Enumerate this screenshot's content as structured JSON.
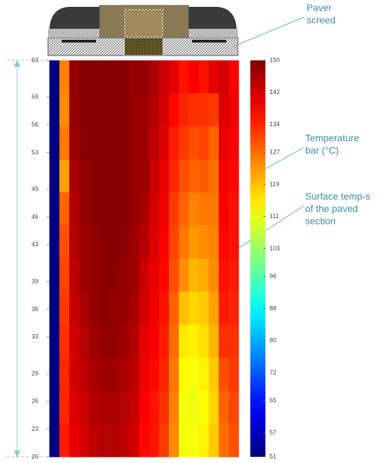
{
  "chart_data": {
    "type": "heatmap",
    "ylim": [
      20,
      63
    ],
    "yticks": [
      63,
      59,
      56,
      53,
      49,
      46,
      43,
      39,
      36,
      33,
      29,
      26,
      23,
      20
    ],
    "colormap": "jet",
    "clim": [
      51,
      150
    ],
    "colorbar_ticks": [
      150,
      142,
      134,
      127,
      119,
      111,
      103,
      96,
      88,
      80,
      72,
      65,
      57,
      51
    ],
    "values": [
      [
        51,
        125,
        148,
        149,
        149,
        149,
        149,
        149,
        148,
        148,
        146,
        143,
        140,
        136,
        138,
        136,
        140,
        142,
        138
      ],
      [
        51,
        124,
        148,
        149,
        149,
        149,
        149,
        149,
        148,
        147,
        145,
        142,
        137,
        134,
        133,
        133,
        132,
        141,
        139
      ],
      [
        51,
        126,
        147,
        149,
        149,
        149,
        149,
        149,
        148,
        147,
        144,
        141,
        135,
        132,
        130,
        131,
        128,
        140,
        138
      ],
      [
        51,
        122,
        146,
        148,
        149,
        149,
        149,
        149,
        148,
        147,
        143,
        140,
        134,
        130,
        128,
        129,
        127,
        139,
        137
      ],
      [
        51,
        128,
        145,
        148,
        149,
        149,
        149,
        149,
        148,
        146,
        142,
        139,
        132,
        128,
        125,
        126,
        126,
        138,
        136
      ],
      [
        51,
        130,
        145,
        147,
        148,
        149,
        149,
        149,
        147,
        145,
        141,
        138,
        131,
        126,
        123,
        124,
        125,
        137,
        136
      ],
      [
        51,
        131,
        144,
        147,
        148,
        149,
        149,
        148,
        147,
        143,
        140,
        137,
        130,
        124,
        120,
        121,
        124,
        136,
        135
      ],
      [
        51,
        132,
        143,
        146,
        148,
        149,
        148,
        148,
        146,
        142,
        139,
        136,
        128,
        119,
        117,
        118,
        122,
        135,
        134
      ],
      [
        51,
        133,
        142,
        145,
        147,
        148,
        148,
        147,
        145,
        140,
        138,
        135,
        127,
        115,
        114,
        116,
        120,
        133,
        133
      ],
      [
        51,
        134,
        142,
        144,
        146,
        147,
        147,
        146,
        144,
        139,
        137,
        134,
        126,
        113,
        112,
        114,
        118,
        130,
        132
      ],
      [
        51,
        134,
        141,
        143,
        145,
        146,
        146,
        145,
        143,
        138,
        136,
        133,
        125,
        112,
        111,
        113,
        117,
        128,
        131
      ],
      [
        51,
        135,
        140,
        142,
        144,
        145,
        145,
        144,
        142,
        137,
        136,
        132,
        124,
        112,
        112,
        114,
        118,
        127,
        130
      ]
    ],
    "annotations": [
      {
        "lines": [
          "Paver",
          "screed"
        ]
      },
      {
        "lines": [
          "Temperature",
          "bar (°C)"
        ]
      },
      {
        "lines": [
          "Surface temp-s",
          "of the paved",
          "section"
        ]
      }
    ]
  }
}
